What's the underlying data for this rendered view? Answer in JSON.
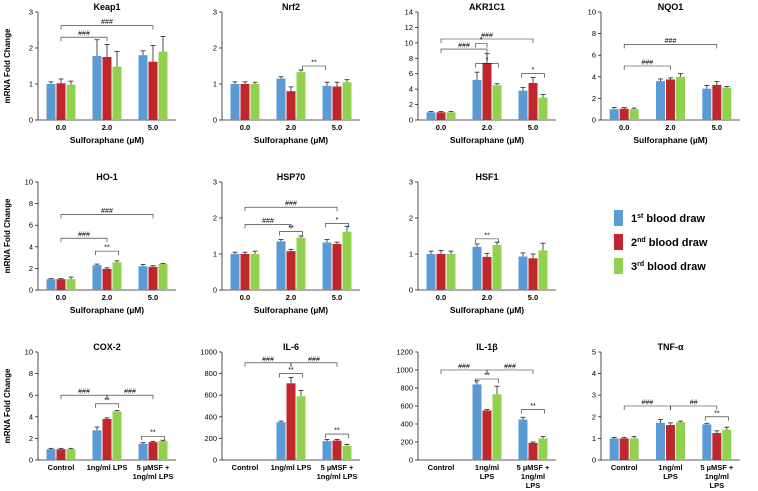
{
  "figure": {
    "ylabel": "mRNA Fold Change",
    "legend": [
      {
        "prefix": "1",
        "sup": "st",
        "suffix": " blood draw",
        "color": "#5b9bd5"
      },
      {
        "prefix": "2",
        "sup": "nd",
        "suffix": " blood draw",
        "color": "#c0272d"
      },
      {
        "prefix": "3",
        "sup": "rd",
        "suffix": " blood draw",
        "color": "#92d050"
      }
    ]
  },
  "chart_data": [
    {
      "type": "bar",
      "title": "Keap1",
      "xlabel": "Sulforaphane (µM)",
      "ylim": [
        0,
        3
      ],
      "yticks": [
        0,
        1,
        2,
        3
      ],
      "show_ylabel": true,
      "categories": [
        "0.0",
        "2.0",
        "5.0"
      ],
      "series": [
        {
          "name": "1st blood draw",
          "values": [
            1.0,
            1.78,
            1.8
          ],
          "errors": [
            0.06,
            0.45,
            0.12
          ]
        },
        {
          "name": "2nd blood draw",
          "values": [
            1.02,
            1.75,
            1.62
          ],
          "errors": [
            0.12,
            0.35,
            0.45
          ]
        },
        {
          "name": "3rd blood draw",
          "values": [
            0.98,
            1.48,
            1.9
          ],
          "errors": [
            0.1,
            0.42,
            0.42
          ]
        }
      ],
      "annotations": [
        {
          "from": 0,
          "to": 1,
          "label": "###",
          "y": 2.3
        },
        {
          "from": 0,
          "to": 2,
          "label": "###",
          "y": 2.62
        }
      ]
    },
    {
      "type": "bar",
      "title": "Nrf2",
      "xlabel": "Sulforaphane (µM)",
      "ylim": [
        0,
        3
      ],
      "yticks": [
        0,
        1,
        2,
        3
      ],
      "show_ylabel": false,
      "categories": [
        "0.0",
        "2.0",
        "5.0"
      ],
      "series": [
        {
          "name": "1st blood draw",
          "values": [
            1.0,
            1.15,
            0.95
          ],
          "errors": [
            0.06,
            0.05,
            0.1
          ]
        },
        {
          "name": "2nd blood draw",
          "values": [
            1.0,
            0.8,
            0.93
          ],
          "errors": [
            0.06,
            0.12,
            0.12
          ]
        },
        {
          "name": "3rd blood draw",
          "values": [
            1.0,
            1.33,
            1.05
          ],
          "errors": [
            0.05,
            0.06,
            0.07
          ]
        }
      ],
      "annotations": [
        {
          "from": 1.25,
          "to": 1.75,
          "label": "**",
          "y": 1.5
        }
      ]
    },
    {
      "type": "bar",
      "title": "AKR1C1",
      "xlabel": "Sulforaphane (µM)",
      "ylim": [
        0,
        14
      ],
      "yticks": [
        0,
        2,
        4,
        6,
        8,
        10,
        12,
        14
      ],
      "show_ylabel": false,
      "categories": [
        "0.0",
        "2.0",
        "5.0"
      ],
      "series": [
        {
          "name": "1st blood draw",
          "values": [
            1.0,
            5.2,
            3.8
          ],
          "errors": [
            0.1,
            1.0,
            0.4
          ]
        },
        {
          "name": "2nd blood draw",
          "values": [
            1.0,
            7.4,
            4.8
          ],
          "errors": [
            0.1,
            1.2,
            0.7
          ]
        },
        {
          "name": "3rd blood draw",
          "values": [
            1.0,
            4.5,
            2.9
          ],
          "errors": [
            0.1,
            0.2,
            0.4
          ]
        }
      ],
      "annotations": [
        {
          "from": 0,
          "to": 1,
          "label": "###",
          "y": 9.2
        },
        {
          "from": 0,
          "to": 2,
          "label": "###",
          "y": 10.5
        },
        {
          "from": 0.75,
          "to": 1.25,
          "label": "*",
          "y": 7.3
        },
        {
          "from": 1.75,
          "to": 2.25,
          "label": "*",
          "y": 6.0
        },
        {
          "from": 0.75,
          "to": 1.0,
          "label": "*",
          "y": 9.9
        }
      ]
    },
    {
      "type": "bar",
      "title": "NQO1",
      "xlabel": "Sulforaphane (µM)",
      "ylim": [
        0,
        10
      ],
      "yticks": [
        0,
        2,
        4,
        6,
        8,
        10
      ],
      "show_ylabel": false,
      "categories": [
        "0.0",
        "2.0",
        "5.0"
      ],
      "series": [
        {
          "name": "1st blood draw",
          "values": [
            1.0,
            3.6,
            2.9
          ],
          "errors": [
            0.15,
            0.2,
            0.3
          ]
        },
        {
          "name": "2nd blood draw",
          "values": [
            1.05,
            3.75,
            3.25
          ],
          "errors": [
            0.1,
            0.15,
            0.3
          ]
        },
        {
          "name": "3rd blood draw",
          "values": [
            1.0,
            4.0,
            3.0
          ],
          "errors": [
            0.1,
            0.3,
            0.1
          ]
        }
      ],
      "annotations": [
        {
          "from": 0,
          "to": 1,
          "label": "###",
          "y": 5.0
        },
        {
          "from": 0,
          "to": 2,
          "label": "###",
          "y": 7.0
        }
      ]
    },
    {
      "type": "bar",
      "title": "HO-1",
      "xlabel": "Sulforaphane (µM)",
      "ylim": [
        0,
        10
      ],
      "yticks": [
        0,
        2,
        4,
        6,
        8,
        10
      ],
      "show_ylabel": true,
      "categories": [
        "0.0",
        "2.0",
        "5.0"
      ],
      "series": [
        {
          "name": "1st blood draw",
          "values": [
            1.0,
            2.3,
            2.2
          ],
          "errors": [
            0.05,
            0.1,
            0.15
          ]
        },
        {
          "name": "2nd blood draw",
          "values": [
            1.0,
            1.95,
            2.15
          ],
          "errors": [
            0.05,
            0.1,
            0.1
          ]
        },
        {
          "name": "3rd blood draw",
          "values": [
            1.0,
            2.55,
            2.4
          ],
          "errors": [
            0.2,
            0.15,
            0.05
          ]
        }
      ],
      "annotations": [
        {
          "from": 0,
          "to": 1,
          "label": "###",
          "y": 4.8
        },
        {
          "from": 0,
          "to": 2,
          "label": "###",
          "y": 7.0
        },
        {
          "from": 0.75,
          "to": 1.25,
          "label": "**",
          "y": 3.6
        }
      ]
    },
    {
      "type": "bar",
      "title": "HSP70",
      "xlabel": "Sulforaphane (µM)",
      "ylim": [
        0,
        3
      ],
      "yticks": [
        0,
        1,
        2,
        3
      ],
      "show_ylabel": false,
      "categories": [
        "0.0",
        "2.0",
        "5.0"
      ],
      "series": [
        {
          "name": "1st blood draw",
          "values": [
            1.0,
            1.35,
            1.32
          ],
          "errors": [
            0.05,
            0.05,
            0.08
          ]
        },
        {
          "name": "2nd blood draw",
          "values": [
            1.0,
            1.08,
            1.28
          ],
          "errors": [
            0.05,
            0.05,
            0.05
          ]
        },
        {
          "name": "3rd blood draw",
          "values": [
            1.0,
            1.45,
            1.62
          ],
          "errors": [
            0.08,
            0.05,
            0.15
          ]
        }
      ],
      "annotations": [
        {
          "from": 0,
          "to": 1,
          "label": "###",
          "y": 1.82
        },
        {
          "from": 0,
          "to": 2,
          "label": "###",
          "y": 2.3
        },
        {
          "from": 0.75,
          "to": 1.25,
          "label": "**",
          "y": 1.62
        },
        {
          "from": 1.75,
          "to": 2.25,
          "label": "*",
          "y": 1.85
        }
      ]
    },
    {
      "type": "bar",
      "title": "HSF1",
      "xlabel": "Sulforaphane (µM)",
      "ylim": [
        0,
        3
      ],
      "yticks": [
        0,
        1,
        2,
        3
      ],
      "show_ylabel": false,
      "categories": [
        "0.0",
        "2.0",
        "5.0"
      ],
      "series": [
        {
          "name": "1st blood draw",
          "values": [
            1.0,
            1.2,
            0.93
          ],
          "errors": [
            0.08,
            0.08,
            0.1
          ]
        },
        {
          "name": "2nd blood draw",
          "values": [
            1.0,
            0.92,
            0.88
          ],
          "errors": [
            0.1,
            0.1,
            0.12
          ]
        },
        {
          "name": "3rd blood draw",
          "values": [
            1.0,
            1.25,
            1.1
          ],
          "errors": [
            0.08,
            0.08,
            0.2
          ]
        }
      ],
      "annotations": [
        {
          "from": 0.75,
          "to": 1.25,
          "label": "**",
          "y": 1.42
        }
      ]
    },
    {
      "type": "bar",
      "title": "COX-2",
      "xlabel": "",
      "ylim": [
        0,
        10
      ],
      "yticks": [
        0,
        2,
        4,
        6,
        8,
        10
      ],
      "show_ylabel": true,
      "categories": [
        "Control",
        "1ng/ml LPS",
        "5 µMSF +\n1ng/ml LPS"
      ],
      "series": [
        {
          "name": "1st blood draw",
          "values": [
            1.0,
            2.75,
            1.5
          ],
          "errors": [
            0.08,
            0.3,
            0.1
          ]
        },
        {
          "name": "2nd blood draw",
          "values": [
            1.0,
            3.8,
            1.65
          ],
          "errors": [
            0.08,
            0.1,
            0.08
          ]
        },
        {
          "name": "3rd blood draw",
          "values": [
            1.0,
            4.5,
            1.75
          ],
          "errors": [
            0.08,
            0.08,
            0.08
          ]
        }
      ],
      "annotations": [
        {
          "from": 0,
          "to": 1,
          "label": "###",
          "y": 6.0
        },
        {
          "from": 1,
          "to": 2,
          "label": "###",
          "y": 6.0
        },
        {
          "from": 0.75,
          "to": 1.25,
          "label": "**",
          "y": 5.2
        },
        {
          "from": 1.75,
          "to": 2.25,
          "label": "**",
          "y": 2.2
        }
      ]
    },
    {
      "type": "bar",
      "title": "IL-6",
      "xlabel": "",
      "ylim": [
        0,
        1000
      ],
      "yticks": [
        0,
        200,
        400,
        600,
        800,
        1000
      ],
      "show_ylabel": false,
      "categories": [
        "Control",
        "1ng/ml LPS",
        "5 µMSF +\n1ng/ml LPS"
      ],
      "series": [
        {
          "name": "1st blood draw",
          "values": [
            0,
            350,
            175
          ],
          "errors": [
            0,
            10,
            15
          ]
        },
        {
          "name": "2nd blood draw",
          "values": [
            0,
            710,
            180
          ],
          "errors": [
            0,
            55,
            10
          ]
        },
        {
          "name": "3rd blood draw",
          "values": [
            0,
            590,
            130
          ],
          "errors": [
            0,
            55,
            15
          ]
        }
      ],
      "annotations": [
        {
          "from": 0,
          "to": 1,
          "label": "###",
          "y": 900
        },
        {
          "from": 1,
          "to": 2,
          "label": "###",
          "y": 900
        },
        {
          "from": 0.75,
          "to": 1.25,
          "label": "**",
          "y": 800
        },
        {
          "from": 1.75,
          "to": 2.25,
          "label": "**",
          "y": 240
        }
      ]
    },
    {
      "type": "bar",
      "title": "IL-1β",
      "xlabel": "",
      "ylim": [
        0,
        1200
      ],
      "yticks": [
        0,
        200,
        400,
        600,
        800,
        1000,
        1200
      ],
      "show_ylabel": false,
      "categories": [
        "Control",
        "1ng/ml\nLPS",
        "5 µMSF +\n1ng/ml\nLPS"
      ],
      "series": [
        {
          "name": "1st blood draw",
          "values": [
            0,
            840,
            450
          ],
          "errors": [
            0,
            40,
            25
          ]
        },
        {
          "name": "2nd blood draw",
          "values": [
            0,
            550,
            190
          ],
          "errors": [
            0,
            10,
            10
          ]
        },
        {
          "name": "3rd blood draw",
          "values": [
            0,
            730,
            240
          ],
          "errors": [
            0,
            90,
            20
          ]
        }
      ],
      "annotations": [
        {
          "from": 0,
          "to": 1,
          "label": "###",
          "y": 1000
        },
        {
          "from": 1,
          "to": 2,
          "label": "###",
          "y": 1000
        },
        {
          "from": 0.75,
          "to": 1.25,
          "label": "**",
          "y": 900
        },
        {
          "from": 1.75,
          "to": 2.25,
          "label": "**",
          "y": 560
        }
      ]
    },
    {
      "type": "bar",
      "title": "TNF-α",
      "xlabel": "",
      "ylim": [
        0,
        5
      ],
      "yticks": [
        0,
        1,
        2,
        3,
        4,
        5
      ],
      "show_ylabel": false,
      "categories": [
        "Control",
        "1ng/ml\nLPS",
        "5 µMSF +\n1ng/ml\nLPS"
      ],
      "series": [
        {
          "name": "1st blood draw",
          "values": [
            1.0,
            1.72,
            1.65
          ],
          "errors": [
            0.05,
            0.15,
            0.05
          ]
        },
        {
          "name": "2nd blood draw",
          "values": [
            1.0,
            1.62,
            1.25
          ],
          "errors": [
            0.05,
            0.1,
            0.1
          ]
        },
        {
          "name": "3rd blood draw",
          "values": [
            1.0,
            1.75,
            1.4
          ],
          "errors": [
            0.08,
            0.05,
            0.12
          ]
        }
      ],
      "annotations": [
        {
          "from": 0,
          "to": 1,
          "label": "###",
          "y": 2.5
        },
        {
          "from": 1,
          "to": 2,
          "label": "##",
          "y": 2.5
        },
        {
          "from": 1.75,
          "to": 2.25,
          "label": "**",
          "y": 2.0
        }
      ]
    }
  ]
}
